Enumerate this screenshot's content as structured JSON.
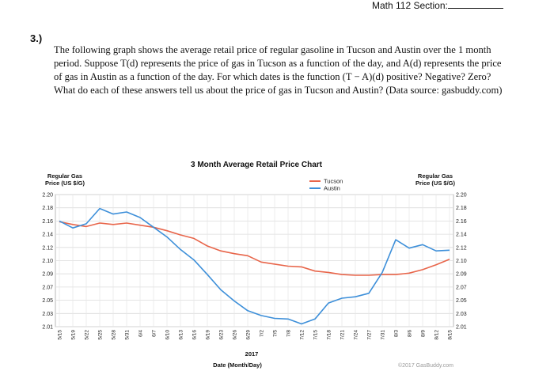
{
  "header": {
    "text": "Math 112 Section:"
  },
  "problem": {
    "number": "3.)",
    "text": "The following graph shows the average retail price of regular gasoline in Tucson and Austin over the 1 month period. Suppose T(d) represents the price of gas in Tucson as a function of the day, and A(d) represents the price of gas in Austin as a function of the day. For which dates is the function (T − A)(d) positive? Negative? Zero? What do each of these answers tell us about the price of gas in Tucson and Austin? (Data source: gasbuddy.com)"
  },
  "chart_data": {
    "type": "line",
    "title": "3 Month Average Retail Price Chart",
    "left_axis_label": [
      "Regular Gas",
      "Price (US $/G)"
    ],
    "right_axis_label": [
      "Regular Gas",
      "Price (US $/G)"
    ],
    "xlabel": "Date (Month/Day)",
    "year_label": "2017",
    "credit": "©2017 GasBuddy.com",
    "ylim": [
      2.01,
      2.2
    ],
    "y_ticks": [
      "2.20",
      "2.18",
      "2.16",
      "2.14",
      "2.12",
      "2.10",
      "2.09",
      "2.07",
      "2.05",
      "2.03",
      "2.01"
    ],
    "x_ticks": [
      "5/15",
      "5/19",
      "5/22",
      "5/25",
      "5/28",
      "5/31",
      "6/4",
      "6/7",
      "6/10",
      "6/13",
      "6/16",
      "6/19",
      "6/23",
      "6/26",
      "6/29",
      "7/2",
      "7/5",
      "7/8",
      "7/12",
      "7/15",
      "7/18",
      "7/21",
      "7/24",
      "7/27",
      "7/31",
      "8/3",
      "8/6",
      "8/9",
      "8/12",
      "8/15"
    ],
    "legend_position": "top-right",
    "series": [
      {
        "name": "Tucson",
        "color": "#e8654a",
        "values": [
          2.161,
          2.157,
          2.154,
          2.159,
          2.157,
          2.159,
          2.156,
          2.153,
          2.148,
          2.142,
          2.137,
          2.126,
          2.119,
          2.115,
          2.112,
          2.103,
          2.1,
          2.097,
          2.096,
          2.09,
          2.088,
          2.085,
          2.084,
          2.084,
          2.085,
          2.085,
          2.087,
          2.092,
          2.099,
          2.107
        ]
      },
      {
        "name": "Austin",
        "color": "#3d8fd9",
        "values": [
          2.162,
          2.152,
          2.158,
          2.18,
          2.172,
          2.175,
          2.167,
          2.153,
          2.139,
          2.121,
          2.106,
          2.085,
          2.063,
          2.047,
          2.033,
          2.026,
          2.022,
          2.021,
          2.014,
          2.021,
          2.044,
          2.051,
          2.053,
          2.058,
          2.088,
          2.135,
          2.123,
          2.128,
          2.119,
          2.12
        ]
      }
    ]
  }
}
